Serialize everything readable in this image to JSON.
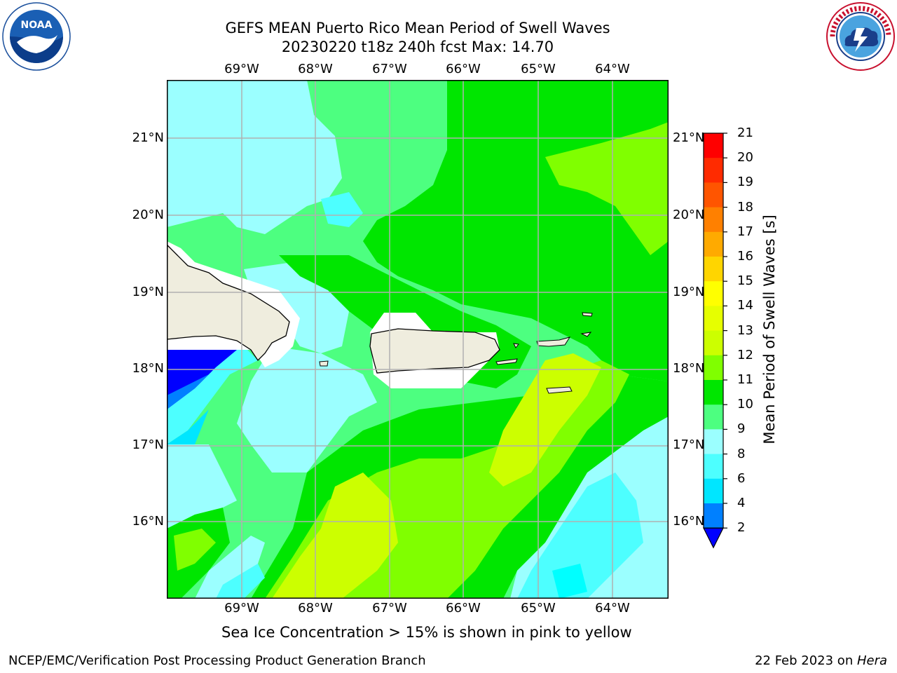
{
  "header": {
    "title_line1": "GEFS MEAN Puerto Rico Mean Period of Swell Waves",
    "title_line2": "20230220 t18z 240h fcst   Max: 14.70"
  },
  "logos": {
    "left": {
      "icon": "noaa-logo-icon",
      "text": "NOAA"
    },
    "right": {
      "icon": "nws-logo-icon"
    }
  },
  "map": {
    "lon_ticks": [
      "69°W",
      "68°W",
      "67°W",
      "66°W",
      "65°W",
      "64°W"
    ],
    "lat_ticks": [
      "21°N",
      "20°N",
      "19°N",
      "18°N",
      "17°N",
      "16°N"
    ],
    "land_color": "#efedde"
  },
  "colorbar": {
    "title": "Mean Period of Swell Waves [s]",
    "ticks": [
      "21",
      "20",
      "19",
      "18",
      "17",
      "16",
      "15",
      "14",
      "13",
      "12",
      "11",
      "10",
      "9",
      "8",
      "6",
      "4",
      "2"
    ],
    "colors": [
      "#ff0000",
      "#ff2b00",
      "#ff5500",
      "#ff8000",
      "#ffaa00",
      "#ffd500",
      "#ffff00",
      "#e6ff00",
      "#ccff00",
      "#80ff00",
      "#00e600",
      "#4dff80",
      "#9bffff",
      "#4dffff",
      "#00e6ff",
      "#0080ff",
      "#0000ff"
    ]
  },
  "subtitle": "Sea Ice Concentration > 15% is shown in pink to yellow",
  "footer": {
    "left": "NCEP/EMC/Verification Post Processing Product Generation Branch",
    "right_date": "22 Feb 2023 on ",
    "right_host": "Hera"
  }
}
